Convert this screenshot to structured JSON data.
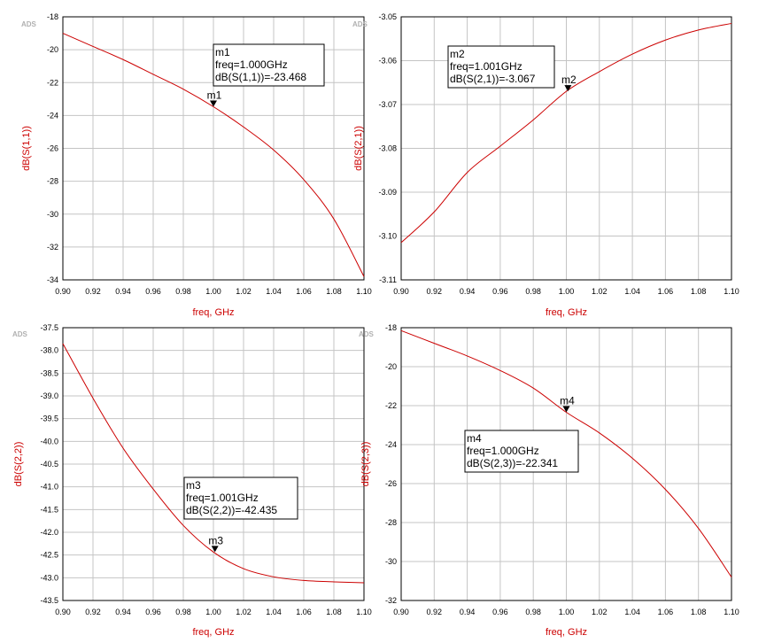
{
  "watermark": "ADS",
  "chart_data": [
    {
      "type": "line",
      "xlabel": "freq, GHz",
      "ylabel": "dB(S(1,1))",
      "xlim": [
        0.9,
        1.1
      ],
      "ylim": [
        -34,
        -18
      ],
      "xticks": [
        "0.90",
        "0.92",
        "0.94",
        "0.96",
        "0.98",
        "1.00",
        "1.02",
        "1.04",
        "1.06",
        "1.08",
        "1.10"
      ],
      "yticks": [
        "-18",
        "-20",
        "-22",
        "-24",
        "-26",
        "-28",
        "-30",
        "-32",
        "-34"
      ],
      "grid": true,
      "line_color": "#cc0000",
      "series": [
        {
          "x": [
            0.9,
            0.92,
            0.94,
            0.96,
            0.98,
            1.0,
            1.02,
            1.04,
            1.06,
            1.08,
            1.1
          ],
          "values": [
            -19.0,
            -19.8,
            -20.6,
            -21.5,
            -22.4,
            -23.468,
            -24.7,
            -26.1,
            -27.9,
            -30.3,
            -33.8
          ]
        }
      ],
      "marker": {
        "name": "m1",
        "x": 1.0,
        "y": -23.468,
        "lines": [
          "m1",
          "freq=1.000GHz",
          "dB(S(1,1))=-23.468"
        ]
      }
    },
    {
      "type": "line",
      "xlabel": "freq, GHz",
      "ylabel": "dB(S(2,1))",
      "xlim": [
        0.9,
        1.1
      ],
      "ylim": [
        -3.11,
        -3.05
      ],
      "xticks": [
        "0.90",
        "0.92",
        "0.94",
        "0.96",
        "0.98",
        "1.00",
        "1.02",
        "1.04",
        "1.06",
        "1.08",
        "1.10"
      ],
      "yticks": [
        "-3.05",
        "-3.06",
        "-3.07",
        "-3.08",
        "-3.09",
        "-3.10",
        "-3.11"
      ],
      "grid": true,
      "line_color": "#cc0000",
      "series": [
        {
          "x": [
            0.9,
            0.92,
            0.94,
            0.96,
            0.98,
            1.0,
            1.02,
            1.04,
            1.06,
            1.08,
            1.1
          ],
          "values": [
            -3.1015,
            -3.0945,
            -3.0855,
            -3.0795,
            -3.0735,
            -3.067,
            -3.0625,
            -3.0585,
            -3.0553,
            -3.053,
            -3.0515
          ]
        }
      ],
      "marker": {
        "name": "m2",
        "x": 1.001,
        "y": -3.067,
        "lines": [
          "m2",
          "freq=1.001GHz",
          "dB(S(2,1))=-3.067"
        ]
      }
    },
    {
      "type": "line",
      "xlabel": "freq, GHz",
      "ylabel": "dB(S(2,2))",
      "xlim": [
        0.9,
        1.1
      ],
      "ylim": [
        -43.5,
        -37.5
      ],
      "xticks": [
        "0.90",
        "0.92",
        "0.94",
        "0.96",
        "0.98",
        "1.00",
        "1.02",
        "1.04",
        "1.06",
        "1.08",
        "1.10"
      ],
      "yticks": [
        "-37.5",
        "-38.0",
        "-38.5",
        "-39.0",
        "-39.5",
        "-40.0",
        "-40.5",
        "-41.0",
        "-41.5",
        "-42.0",
        "-42.5",
        "-43.0",
        "-43.5"
      ],
      "grid": true,
      "line_color": "#cc0000",
      "series": [
        {
          "x": [
            0.9,
            0.92,
            0.94,
            0.96,
            0.98,
            1.0,
            1.02,
            1.04,
            1.06,
            1.08,
            1.1
          ],
          "values": [
            -37.85,
            -39.05,
            -40.15,
            -41.05,
            -41.85,
            -42.435,
            -42.8,
            -42.98,
            -43.06,
            -43.09,
            -43.11
          ]
        }
      ],
      "marker": {
        "name": "m3",
        "x": 1.001,
        "y": -42.435,
        "lines": [
          "m3",
          "freq=1.001GHz",
          "dB(S(2,2))=-42.435"
        ]
      }
    },
    {
      "type": "line",
      "xlabel": "freq, GHz",
      "ylabel": "dB(S(2,3))",
      "xlim": [
        0.9,
        1.1
      ],
      "ylim": [
        -32,
        -18
      ],
      "xticks": [
        "0.90",
        "0.92",
        "0.94",
        "0.96",
        "0.98",
        "1.00",
        "1.02",
        "1.04",
        "1.06",
        "1.08",
        "1.10"
      ],
      "yticks": [
        "-18",
        "-20",
        "-22",
        "-24",
        "-26",
        "-28",
        "-30",
        "-32"
      ],
      "grid": true,
      "line_color": "#cc0000",
      "series": [
        {
          "x": [
            0.9,
            0.92,
            0.94,
            0.96,
            0.98,
            1.0,
            1.02,
            1.04,
            1.06,
            1.08,
            1.1
          ],
          "values": [
            -18.15,
            -18.8,
            -19.45,
            -20.2,
            -21.1,
            -22.341,
            -23.4,
            -24.7,
            -26.3,
            -28.3,
            -30.8
          ]
        }
      ],
      "marker": {
        "name": "m4",
        "x": 1.0,
        "y": -22.341,
        "lines": [
          "m4",
          "freq=1.000GHz",
          "dB(S(2,3))=-22.341"
        ]
      }
    }
  ]
}
